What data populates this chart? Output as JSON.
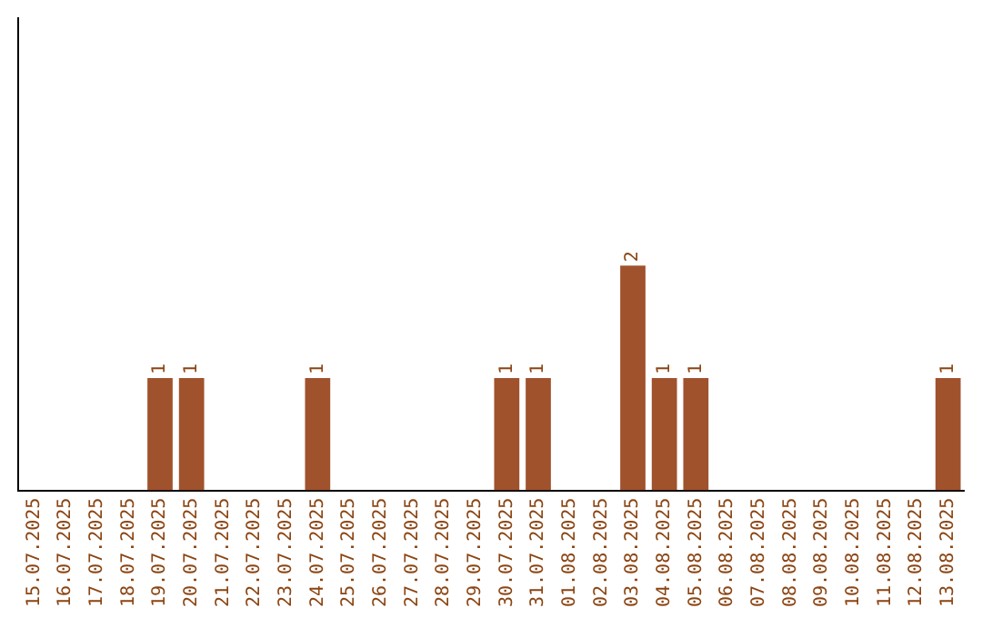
{
  "chart_data": {
    "type": "bar",
    "categories": [
      "15.07.2025",
      "16.07.2025",
      "17.07.2025",
      "18.07.2025",
      "19.07.2025",
      "20.07.2025",
      "21.07.2025",
      "22.07.2025",
      "23.07.2025",
      "24.07.2025",
      "25.07.2025",
      "26.07.2025",
      "27.07.2025",
      "28.07.2025",
      "29.07.2025",
      "30.07.2025",
      "31.07.2025",
      "01.08.2025",
      "02.08.2025",
      "03.08.2025",
      "04.08.2025",
      "05.08.2025",
      "06.08.2025",
      "07.08.2025",
      "08.08.2025",
      "09.08.2025",
      "10.08.2025",
      "11.08.2025",
      "12.08.2025",
      "13.08.2025"
    ],
    "values": [
      0,
      0,
      0,
      0,
      1,
      1,
      0,
      0,
      0,
      1,
      0,
      0,
      0,
      0,
      0,
      1,
      1,
      0,
      0,
      2,
      1,
      1,
      0,
      0,
      0,
      0,
      0,
      0,
      0,
      1
    ],
    "value_labels": [
      null,
      null,
      null,
      null,
      "1",
      "1",
      null,
      null,
      null,
      "1",
      null,
      null,
      null,
      null,
      null,
      "1",
      "1",
      null,
      null,
      "2",
      "1",
      "1",
      null,
      null,
      null,
      null,
      null,
      null,
      null,
      "1"
    ],
    "color": "#a0522d",
    "ylim": [
      0,
      4.2
    ],
    "tick_labels": "x",
    "grid": false,
    "legend": false
  }
}
